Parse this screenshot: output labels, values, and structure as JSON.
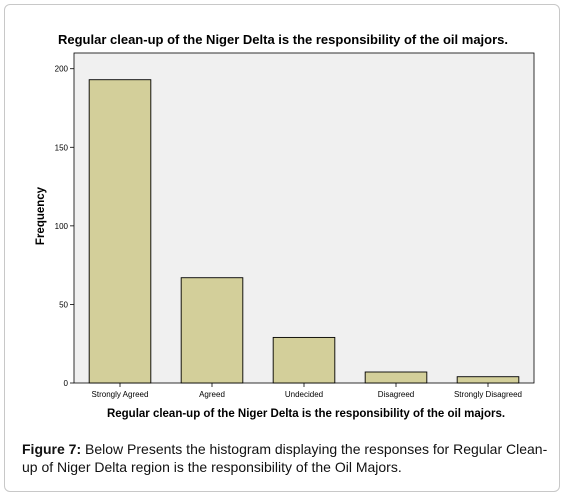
{
  "chart_data": {
    "type": "bar",
    "title": "Regular clean-up of the Niger Delta is the responsibility of the oil majors.",
    "xlabel": "Regular clean-up of the Niger Delta is the responsibility of the oil majors.",
    "ylabel": "Frequency",
    "categories": [
      "Strongly Agreed",
      "Agreed",
      "Undecided",
      "Disagreed",
      "Strongly Disagreed"
    ],
    "values": [
      193,
      67,
      29,
      7,
      4
    ],
    "ylim": [
      0,
      210
    ],
    "yticks": [
      0,
      50,
      100,
      150,
      200
    ],
    "grid": false,
    "colors": {
      "bar_fill": "#d3cf9a",
      "bar_stroke": "#000000",
      "plot_background": "#f0f0f0",
      "page_background": "#ffffff"
    }
  },
  "caption": {
    "label": "Figure 7:",
    "text": " Below Presents the histogram displaying the responses for Regular Clean-up of Niger Delta region is the responsibility of the Oil Majors."
  }
}
